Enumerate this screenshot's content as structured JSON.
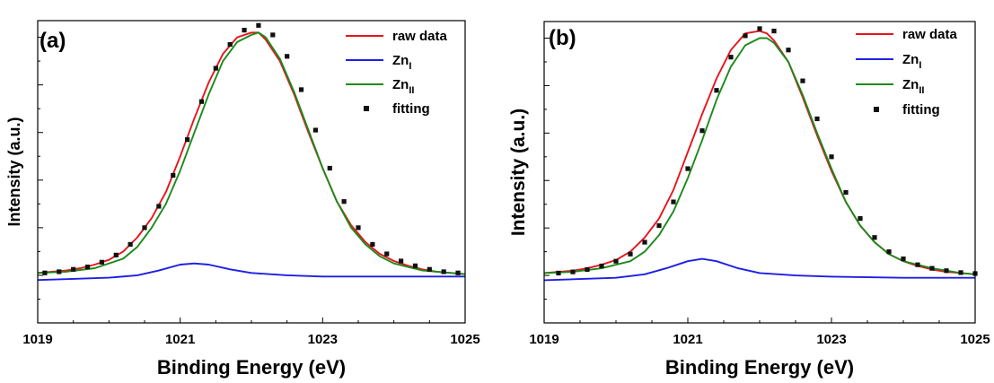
{
  "chart_data": [
    {
      "type": "line",
      "panel_label": "(a)",
      "xlabel": "Binding Energy (eV)",
      "ylabel": "Intensity (a.u.)",
      "xlim": [
        1019,
        1025
      ],
      "ylim": [
        -0.2,
        1.07
      ],
      "x_ticks": [
        "1019",
        "1021",
        "1023",
        "1025"
      ],
      "y_tick_labels_shown": false,
      "legend_position": "top-right",
      "legend": [
        {
          "label": "raw data",
          "label_sub": "",
          "style": "line",
          "color": "#e8141b"
        },
        {
          "label": "Zn",
          "label_sub": "I",
          "style": "line",
          "color": "#1e1ee6"
        },
        {
          "label": "Zn",
          "label_sub": "II",
          "style": "line",
          "color": "#1a8a1a"
        },
        {
          "label": "fitting",
          "label_sub": "",
          "style": "marker",
          "color": "#111111"
        }
      ],
      "series": [
        {
          "name": "raw data",
          "color": "#e8141b",
          "x": [
            1019.0,
            1019.2,
            1019.4,
            1019.6,
            1019.8,
            1020.0,
            1020.2,
            1020.4,
            1020.6,
            1020.8,
            1021.0,
            1021.2,
            1021.4,
            1021.6,
            1021.8,
            1022.0,
            1022.1,
            1022.2,
            1022.4,
            1022.6,
            1022.8,
            1023.0,
            1023.2,
            1023.4,
            1023.6,
            1023.8,
            1024.0,
            1024.2,
            1024.4,
            1024.6,
            1024.8,
            1025.0
          ],
          "y": [
            0.01,
            0.015,
            0.02,
            0.03,
            0.045,
            0.065,
            0.1,
            0.16,
            0.24,
            0.35,
            0.5,
            0.66,
            0.81,
            0.93,
            1.0,
            1.02,
            1.02,
            0.99,
            0.9,
            0.76,
            0.6,
            0.45,
            0.31,
            0.21,
            0.14,
            0.09,
            0.06,
            0.04,
            0.025,
            0.015,
            0.01,
            0.005
          ]
        },
        {
          "name": "Zn_I",
          "color": "#1e1ee6",
          "x": [
            1019.0,
            1019.5,
            1020.0,
            1020.4,
            1020.7,
            1021.0,
            1021.2,
            1021.4,
            1021.7,
            1022.0,
            1022.5,
            1023.0,
            1024.0,
            1025.0
          ],
          "y": [
            -0.02,
            -0.015,
            -0.01,
            0.0,
            0.02,
            0.045,
            0.05,
            0.045,
            0.025,
            0.01,
            0.0,
            -0.005,
            -0.005,
            -0.005
          ]
        },
        {
          "name": "Zn_II",
          "color": "#1a8a1a",
          "x": [
            1019.0,
            1019.4,
            1019.8,
            1020.2,
            1020.4,
            1020.6,
            1020.8,
            1021.0,
            1021.2,
            1021.4,
            1021.6,
            1021.8,
            1022.0,
            1022.1,
            1022.2,
            1022.4,
            1022.6,
            1022.8,
            1023.0,
            1023.2,
            1023.4,
            1023.6,
            1023.8,
            1024.0,
            1024.4,
            1024.8,
            1025.0
          ],
          "y": [
            0.01,
            0.015,
            0.03,
            0.07,
            0.12,
            0.2,
            0.3,
            0.44,
            0.6,
            0.76,
            0.9,
            0.98,
            1.01,
            1.02,
            1.0,
            0.91,
            0.77,
            0.61,
            0.45,
            0.31,
            0.2,
            0.13,
            0.08,
            0.05,
            0.02,
            0.01,
            0.005
          ]
        },
        {
          "name": "fitting",
          "color": "#111111",
          "marker": "square",
          "x": [
            1019.1,
            1019.3,
            1019.5,
            1019.7,
            1019.9,
            1020.1,
            1020.3,
            1020.5,
            1020.7,
            1020.9,
            1021.1,
            1021.3,
            1021.5,
            1021.7,
            1021.9,
            1022.1,
            1022.3,
            1022.5,
            1022.7,
            1022.9,
            1023.1,
            1023.3,
            1023.5,
            1023.7,
            1023.9,
            1024.1,
            1024.3,
            1024.5,
            1024.7,
            1024.9
          ],
          "y": [
            0.01,
            0.015,
            0.025,
            0.035,
            0.055,
            0.085,
            0.13,
            0.2,
            0.29,
            0.42,
            0.57,
            0.73,
            0.87,
            0.97,
            1.03,
            1.05,
            1.01,
            0.92,
            0.78,
            0.61,
            0.45,
            0.31,
            0.2,
            0.13,
            0.09,
            0.06,
            0.04,
            0.025,
            0.015,
            0.01
          ]
        }
      ]
    },
    {
      "type": "line",
      "panel_label": "(b)",
      "xlabel": "Binding Energy (eV)",
      "ylabel": "Intensity (a.u.)",
      "xlim": [
        1019,
        1025
      ],
      "ylim": [
        -0.2,
        1.07
      ],
      "x_ticks": [
        "1019",
        "1021",
        "1023",
        "1025"
      ],
      "y_tick_labels_shown": false,
      "legend_position": "top-right",
      "legend": [
        {
          "label": "raw data",
          "label_sub": "",
          "style": "line",
          "color": "#e8141b"
        },
        {
          "label": "Zn",
          "label_sub": "I",
          "style": "line",
          "color": "#1e1ee6"
        },
        {
          "label": "Zn",
          "label_sub": "II",
          "style": "line",
          "color": "#1a8a1a"
        },
        {
          "label": "fitting",
          "label_sub": "",
          "style": "marker",
          "color": "#111111"
        }
      ],
      "series": [
        {
          "name": "raw data",
          "color": "#e8141b",
          "x": [
            1019.0,
            1019.2,
            1019.4,
            1019.6,
            1019.8,
            1020.0,
            1020.2,
            1020.4,
            1020.6,
            1020.8,
            1021.0,
            1021.2,
            1021.4,
            1021.6,
            1021.8,
            1022.0,
            1022.1,
            1022.2,
            1022.4,
            1022.6,
            1022.8,
            1023.0,
            1023.2,
            1023.4,
            1023.6,
            1023.8,
            1024.0,
            1024.2,
            1024.4,
            1024.6,
            1024.8,
            1025.0
          ],
          "y": [
            0.01,
            0.015,
            0.02,
            0.03,
            0.045,
            0.065,
            0.1,
            0.16,
            0.24,
            0.36,
            0.52,
            0.68,
            0.83,
            0.95,
            1.02,
            1.03,
            1.02,
            0.99,
            0.9,
            0.75,
            0.59,
            0.44,
            0.31,
            0.21,
            0.14,
            0.09,
            0.06,
            0.04,
            0.025,
            0.015,
            0.01,
            0.005
          ]
        },
        {
          "name": "Zn_I",
          "color": "#1e1ee6",
          "x": [
            1019.0,
            1019.5,
            1020.0,
            1020.4,
            1020.7,
            1021.0,
            1021.2,
            1021.4,
            1021.7,
            1022.0,
            1022.5,
            1023.0,
            1024.0,
            1025.0
          ],
          "y": [
            -0.02,
            -0.015,
            -0.01,
            0.005,
            0.03,
            0.06,
            0.07,
            0.06,
            0.03,
            0.01,
            0.0,
            -0.005,
            -0.01,
            -0.01
          ]
        },
        {
          "name": "Zn_II",
          "color": "#1a8a1a",
          "x": [
            1019.0,
            1019.4,
            1019.8,
            1020.2,
            1020.4,
            1020.6,
            1020.8,
            1021.0,
            1021.2,
            1021.4,
            1021.6,
            1021.8,
            1022.0,
            1022.1,
            1022.2,
            1022.4,
            1022.6,
            1022.8,
            1023.0,
            1023.2,
            1023.4,
            1023.6,
            1023.8,
            1024.0,
            1024.4,
            1024.8,
            1025.0
          ],
          "y": [
            0.01,
            0.015,
            0.03,
            0.06,
            0.1,
            0.17,
            0.27,
            0.41,
            0.57,
            0.74,
            0.88,
            0.97,
            1.0,
            1.0,
            0.98,
            0.9,
            0.76,
            0.6,
            0.45,
            0.31,
            0.21,
            0.14,
            0.09,
            0.06,
            0.03,
            0.01,
            0.005
          ]
        },
        {
          "name": "fitting",
          "color": "#111111",
          "marker": "square",
          "x": [
            1019.2,
            1019.4,
            1019.6,
            1019.8,
            1020.0,
            1020.2,
            1020.4,
            1020.6,
            1020.8,
            1021.0,
            1021.2,
            1021.4,
            1021.6,
            1021.8,
            1022.0,
            1022.2,
            1022.4,
            1022.6,
            1022.8,
            1023.0,
            1023.2,
            1023.4,
            1023.6,
            1023.8,
            1024.0,
            1024.2,
            1024.4,
            1024.6,
            1024.8,
            1025.0
          ],
          "y": [
            0.01,
            0.015,
            0.025,
            0.04,
            0.06,
            0.09,
            0.14,
            0.21,
            0.31,
            0.45,
            0.61,
            0.78,
            0.92,
            1.01,
            1.04,
            1.03,
            0.95,
            0.82,
            0.66,
            0.5,
            0.35,
            0.24,
            0.16,
            0.1,
            0.07,
            0.045,
            0.03,
            0.02,
            0.012,
            0.008
          ]
        }
      ]
    }
  ]
}
